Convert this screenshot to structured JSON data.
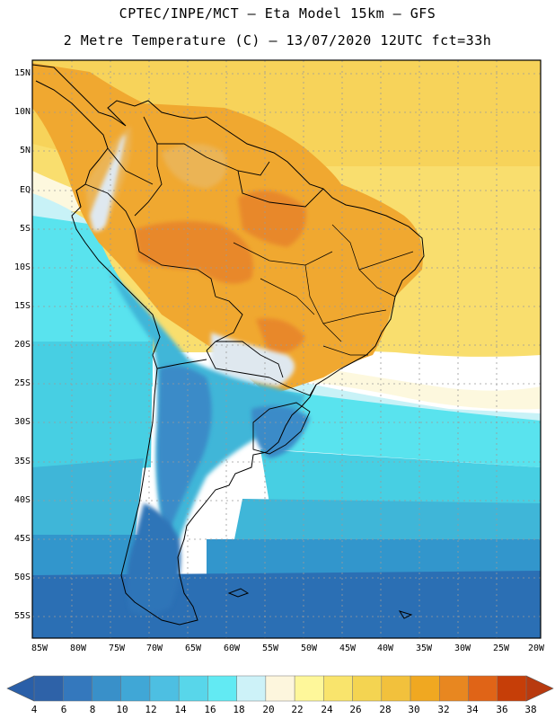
{
  "header": {
    "line1": "CPTEC/INPE/MCT –  Eta Model 15km – GFS",
    "line2": "2 Metre Temperature (C) – 13/07/2020 12UTC fct=33h"
  },
  "map": {
    "lat_labels": [
      "15N",
      "10N",
      "5N",
      "EQ",
      "5S",
      "10S",
      "15S",
      "20S",
      "25S",
      "30S",
      "35S",
      "40S",
      "45S",
      "50S",
      "55S"
    ],
    "lon_labels": [
      "85W",
      "80W",
      "75W",
      "70W",
      "65W",
      "60W",
      "55W",
      "50W",
      "45W",
      "40W",
      "35W",
      "30W",
      "25W",
      "20W"
    ],
    "ocean_bands": [
      "#f7d35a",
      "#f9de6e",
      "#fdf8de",
      "#c8f2f7",
      "#59e3ee",
      "#47cfe3",
      "#3fb6d8",
      "#3296cc",
      "#2b6fb4"
    ],
    "land_colors": [
      "#f0a830",
      "#e8882a",
      "#ebb454",
      "#dfe8ef",
      "#3fb6d8",
      "#3a8bc8",
      "#2d74b8"
    ]
  },
  "colorbar": {
    "labels": [
      "4",
      "6",
      "8",
      "10",
      "12",
      "14",
      "16",
      "18",
      "20",
      "22",
      "24",
      "26",
      "28",
      "30",
      "32",
      "34",
      "36",
      "38"
    ],
    "colors": [
      "#2e62a8",
      "#3478bd",
      "#3990c9",
      "#40a7d6",
      "#4dbfe2",
      "#58d6ea",
      "#62eaf3",
      "#cdf2f8",
      "#fdf6dd",
      "#fef79a",
      "#f9e46c",
      "#f4d451",
      "#f2c13c",
      "#f0a821",
      "#e88720",
      "#e06417",
      "#c63e08"
    ],
    "left_arrow_color": "#2a5fa8",
    "right_arrow_color": "#b83a0f"
  }
}
